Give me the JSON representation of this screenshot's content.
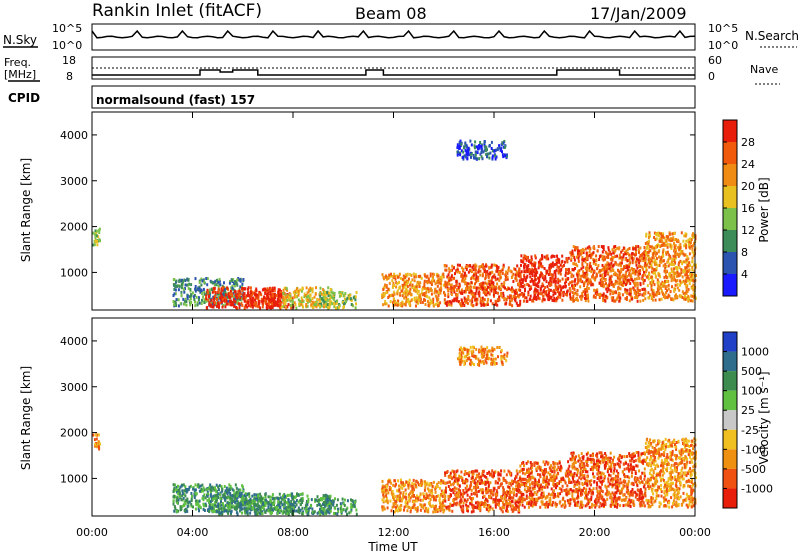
{
  "header": {
    "station": "Rankin Inlet (fitACF)",
    "beam": "Beam 08",
    "date": "17/Jan/2009"
  },
  "top_panel": {
    "left_label": "N.Sky",
    "left_ticks": [
      "10^5",
      "10^0"
    ],
    "right_label": "N.Search",
    "right_ticks": [
      "10^5",
      "10^0"
    ]
  },
  "freq_panel": {
    "left_label_1": "Freq.",
    "left_label_2": "[MHz]",
    "left_ticks": [
      "18",
      "8"
    ],
    "right_label": "Nave",
    "right_ticks": [
      "60",
      "0"
    ]
  },
  "cpid": {
    "label": "CPID",
    "mode_text": "normalsound (fast) 157"
  },
  "x_axis": {
    "ticks": [
      "00:00",
      "04:00",
      "08:00",
      "12:00",
      "16:00",
      "20:00",
      "00:00"
    ],
    "label": "Time UT"
  },
  "y_axis": {
    "label": "Slant Range [km]",
    "ticks": [
      "1000",
      "2000",
      "3000",
      "4000"
    ]
  },
  "power_scale": {
    "label": "Power [dB]",
    "ticks": [
      "4",
      "8",
      "12",
      "16",
      "20",
      "24",
      "28"
    ],
    "colors": [
      "#1a1aff",
      "#2b54b0",
      "#3c8c5a",
      "#7cc24a",
      "#e8c020",
      "#f08c14",
      "#f05a0a",
      "#e81e0a"
    ]
  },
  "velocity_scale": {
    "label": "Velocity [m s⁻¹]",
    "ticks": [
      "1000",
      "500",
      "100",
      "25",
      "-25",
      "-100",
      "-500",
      "-1000"
    ],
    "colors": [
      "#2040c8",
      "#2e6e8c",
      "#3c8c50",
      "#60c040",
      "#c8c8c8",
      "#f0c020",
      "#f09010",
      "#f05010",
      "#e81e0a"
    ]
  },
  "chart_data": {
    "type": "heatmap",
    "panels": [
      "power",
      "velocity"
    ],
    "x_range_hours": [
      0,
      24
    ],
    "y_range_km": [
      180,
      4500
    ],
    "regions": [
      {
        "t0": 0.0,
        "t1": 0.3,
        "r0": 1600,
        "r1": 2000,
        "p": 3,
        "v": 6
      },
      {
        "t0": 3.2,
        "t1": 6.0,
        "r0": 300,
        "r1": 900,
        "p": 2,
        "v": 2
      },
      {
        "t0": 4.5,
        "t1": 7.5,
        "r0": 250,
        "r1": 700,
        "p": 7,
        "v": 2
      },
      {
        "t0": 6.0,
        "t1": 8.0,
        "r0": 250,
        "r1": 600,
        "p": 7,
        "v": 2
      },
      {
        "t0": 7.5,
        "t1": 9.5,
        "r0": 250,
        "r1": 700,
        "p": 4,
        "v": 2
      },
      {
        "t0": 9.0,
        "t1": 10.5,
        "r0": 250,
        "r1": 600,
        "p": 3,
        "v": 2
      },
      {
        "t0": 11.5,
        "t1": 14.0,
        "r0": 300,
        "r1": 1000,
        "p": 5,
        "v": 6
      },
      {
        "t0": 14.0,
        "t1": 17.0,
        "r0": 300,
        "r1": 1200,
        "p": 6,
        "v": 7
      },
      {
        "t0": 17.0,
        "t1": 19.0,
        "r0": 400,
        "r1": 1400,
        "p": 7,
        "v": 7
      },
      {
        "t0": 19.0,
        "t1": 22.0,
        "r0": 400,
        "r1": 1600,
        "p": 6,
        "v": 7
      },
      {
        "t0": 22.0,
        "t1": 24.0,
        "r0": 400,
        "r1": 1900,
        "p": 5,
        "v": 6
      },
      {
        "t0": 14.5,
        "t1": 16.5,
        "r0": 3500,
        "r1": 3900,
        "p": 1,
        "v": 6
      }
    ]
  }
}
